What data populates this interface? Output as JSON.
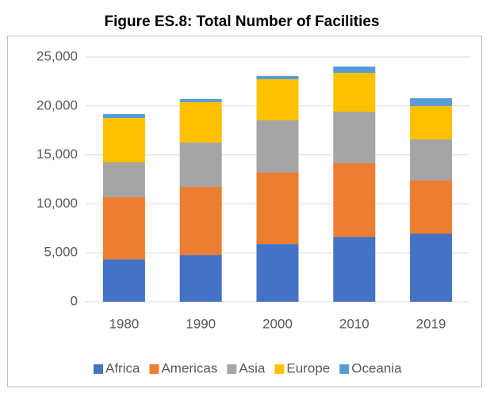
{
  "chart_data": {
    "type": "stacked_bar",
    "title": "Figure ES.8: Total Number of Facilities",
    "categories": [
      "1980",
      "1990",
      "2000",
      "2010",
      "2019"
    ],
    "series": [
      {
        "name": "Africa",
        "color": "#4472c4",
        "values": [
          4350,
          4770,
          5900,
          6630,
          6960
        ]
      },
      {
        "name": "Americas",
        "color": "#ed7d31",
        "values": [
          6330,
          6960,
          7290,
          7530,
          5420
        ]
      },
      {
        "name": "Asia",
        "color": "#a5a5a5",
        "values": [
          3560,
          4530,
          5340,
          5260,
          4210
        ]
      },
      {
        "name": "Europe",
        "color": "#ffc000",
        "values": [
          4530,
          4130,
          4200,
          3960,
          3390
        ]
      },
      {
        "name": "Oceania",
        "color": "#5b9bd5",
        "values": [
          400,
          320,
          330,
          650,
          810
        ]
      }
    ],
    "ylim": [
      0,
      25000
    ],
    "yticks": [
      0,
      {
        "value": 5000,
        "label": "5,000"
      },
      {
        "value": 10000,
        "label": "10,000"
      },
      {
        "value": 15000,
        "label": "15,000"
      },
      {
        "value": 20000,
        "label": "20,000"
      },
      {
        "value": 25000,
        "label": "25,000"
      }
    ],
    "grid": true,
    "legend": "bottom"
  }
}
